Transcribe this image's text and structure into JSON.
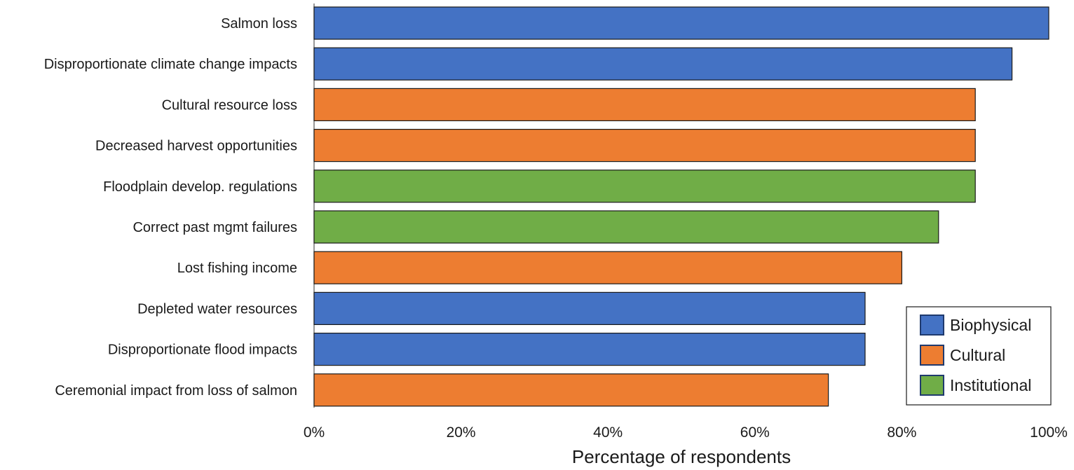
{
  "chart_data": {
    "type": "bar",
    "orientation": "horizontal",
    "categories": [
      "Salmon loss",
      "Disproportionate climate change impacts",
      "Cultural resource loss",
      "Decreased harvest opportunities",
      "Floodplain develop. regulations",
      "Correct past mgmt failures",
      "Lost fishing income",
      "Depleted water resources",
      "Disproportionate flood impacts",
      "Ceremonial impact from loss of salmon"
    ],
    "values": [
      100,
      95,
      90,
      90,
      90,
      85,
      80,
      75,
      75,
      70
    ],
    "groups": [
      "Biophysical",
      "Biophysical",
      "Cultural",
      "Cultural",
      "Institutional",
      "Institutional",
      "Cultural",
      "Biophysical",
      "Biophysical",
      "Cultural"
    ],
    "xlabel": "Percentage of respondents",
    "xlim": [
      0,
      100
    ],
    "xticks": [
      "0%",
      "20%",
      "40%",
      "60%",
      "80%",
      "100%"
    ],
    "xtick_values": [
      0,
      20,
      40,
      60,
      80,
      100
    ],
    "grid": false,
    "legend": {
      "placement": "bottom-right",
      "entries": [
        {
          "label": "Biophysical",
          "color": "#4472c4"
        },
        {
          "label": "Cultural",
          "color": "#ed7d31"
        },
        {
          "label": "Institutional",
          "color": "#70ad47"
        }
      ]
    },
    "colors": {
      "Biophysical": "#4472c4",
      "Cultural": "#ed7d31",
      "Institutional": "#70ad47"
    }
  }
}
